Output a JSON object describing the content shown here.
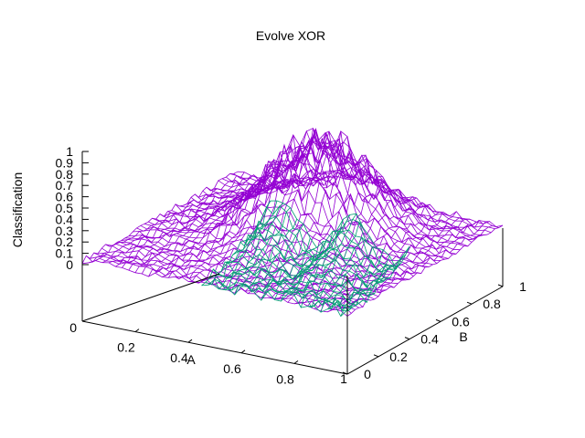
{
  "chart_data": {
    "type": "surface",
    "title": "Evolve XOR",
    "xlabel": "A",
    "ylabel": "B",
    "zlabel": "Classification",
    "xlim": [
      0,
      1
    ],
    "ylim": [
      0,
      1
    ],
    "zlim": [
      0,
      1
    ],
    "x_ticks": [
      "0.2",
      "0.4",
      "0.6",
      "0.8"
    ],
    "x_end_ticks": [
      "0",
      "1"
    ],
    "y_ticks": [
      "0",
      "0.2",
      "0.4",
      "0.6",
      "0.8",
      "1"
    ],
    "z_ticks": [
      "0",
      "0.1",
      "0.2",
      "0.3",
      "0.4",
      "0.5",
      "0.6",
      "0.7",
      "0.8",
      "0.9",
      "1"
    ],
    "grid": false,
    "legend": "none",
    "series": [
      {
        "description": "output surface where classification is near 1 around A≈0.5, B≈0.65 and near 0 elsewhere",
        "peak": {
          "A": 0.5,
          "B": 0.65,
          "value": 1.0
        },
        "color": "#9400d3"
      },
      {
        "description": "overlay surface patch over A≈0.45–1.0, B≈0–0.4 with values up to ≈0.6",
        "region": {
          "A": [
            0.45,
            1.0
          ],
          "B": [
            0.0,
            0.4
          ]
        },
        "max_value": 0.6,
        "color": "#009e73"
      }
    ]
  }
}
